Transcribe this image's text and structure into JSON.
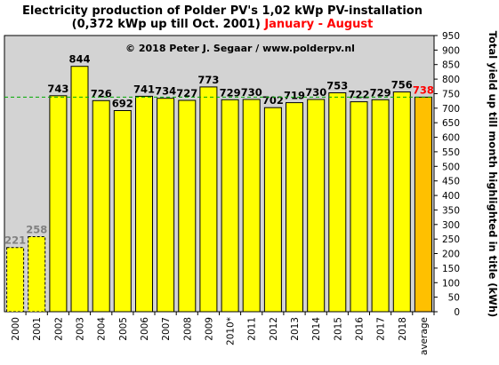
{
  "header": {
    "title_line1": "Electricity production  of Polder PV's 1,02 kWp PV-installation",
    "title_line2_black": "(0,372 kWp up till Oct. 2001) ",
    "title_line2_red": "January - August"
  },
  "copyright": "© 2018 Peter J. Segaar / www.polderpv.nl",
  "chart_data": {
    "type": "bar",
    "title": "Electricity production  of Polder PV's 1,02 kWp PV-installation (0,372 kWp up till Oct. 2001) January - August",
    "ylabel": "Total yield up till month highlighted in title (kWh)",
    "xlabel": "",
    "ylim": [
      0,
      950
    ],
    "yticks": [
      0,
      50,
      100,
      150,
      200,
      250,
      300,
      350,
      400,
      450,
      500,
      550,
      600,
      650,
      700,
      750,
      800,
      850,
      900,
      950
    ],
    "grid": false,
    "legend": "none",
    "categories": [
      "2000",
      "2001",
      "2002",
      "2003",
      "2004",
      "2005",
      "2006",
      "2007",
      "2008",
      "2009",
      "2010*",
      "2011",
      "2012",
      "2013",
      "2014",
      "2015",
      "2016",
      "2017",
      "2018",
      "average"
    ],
    "values": [
      221,
      258,
      743,
      844,
      726,
      692,
      741,
      734,
      727,
      773,
      729,
      730,
      702,
      719,
      730,
      753,
      722,
      729,
      756,
      738
    ],
    "value_labels": [
      "221",
      "258",
      "743",
      "844",
      "726",
      "692",
      "741",
      "734",
      "727",
      "773",
      "729",
      "730",
      "702",
      "719",
      "730",
      "753",
      "722",
      "729",
      "756",
      "738"
    ],
    "reference_line": 738,
    "colors": {
      "plot_background": "#d3d3d3",
      "bar": "#ffff00",
      "average_bar": "#ffc000",
      "partial_year_label": "#808080",
      "average_label": "#ff0000",
      "reference_line": "#00aa00"
    }
  }
}
